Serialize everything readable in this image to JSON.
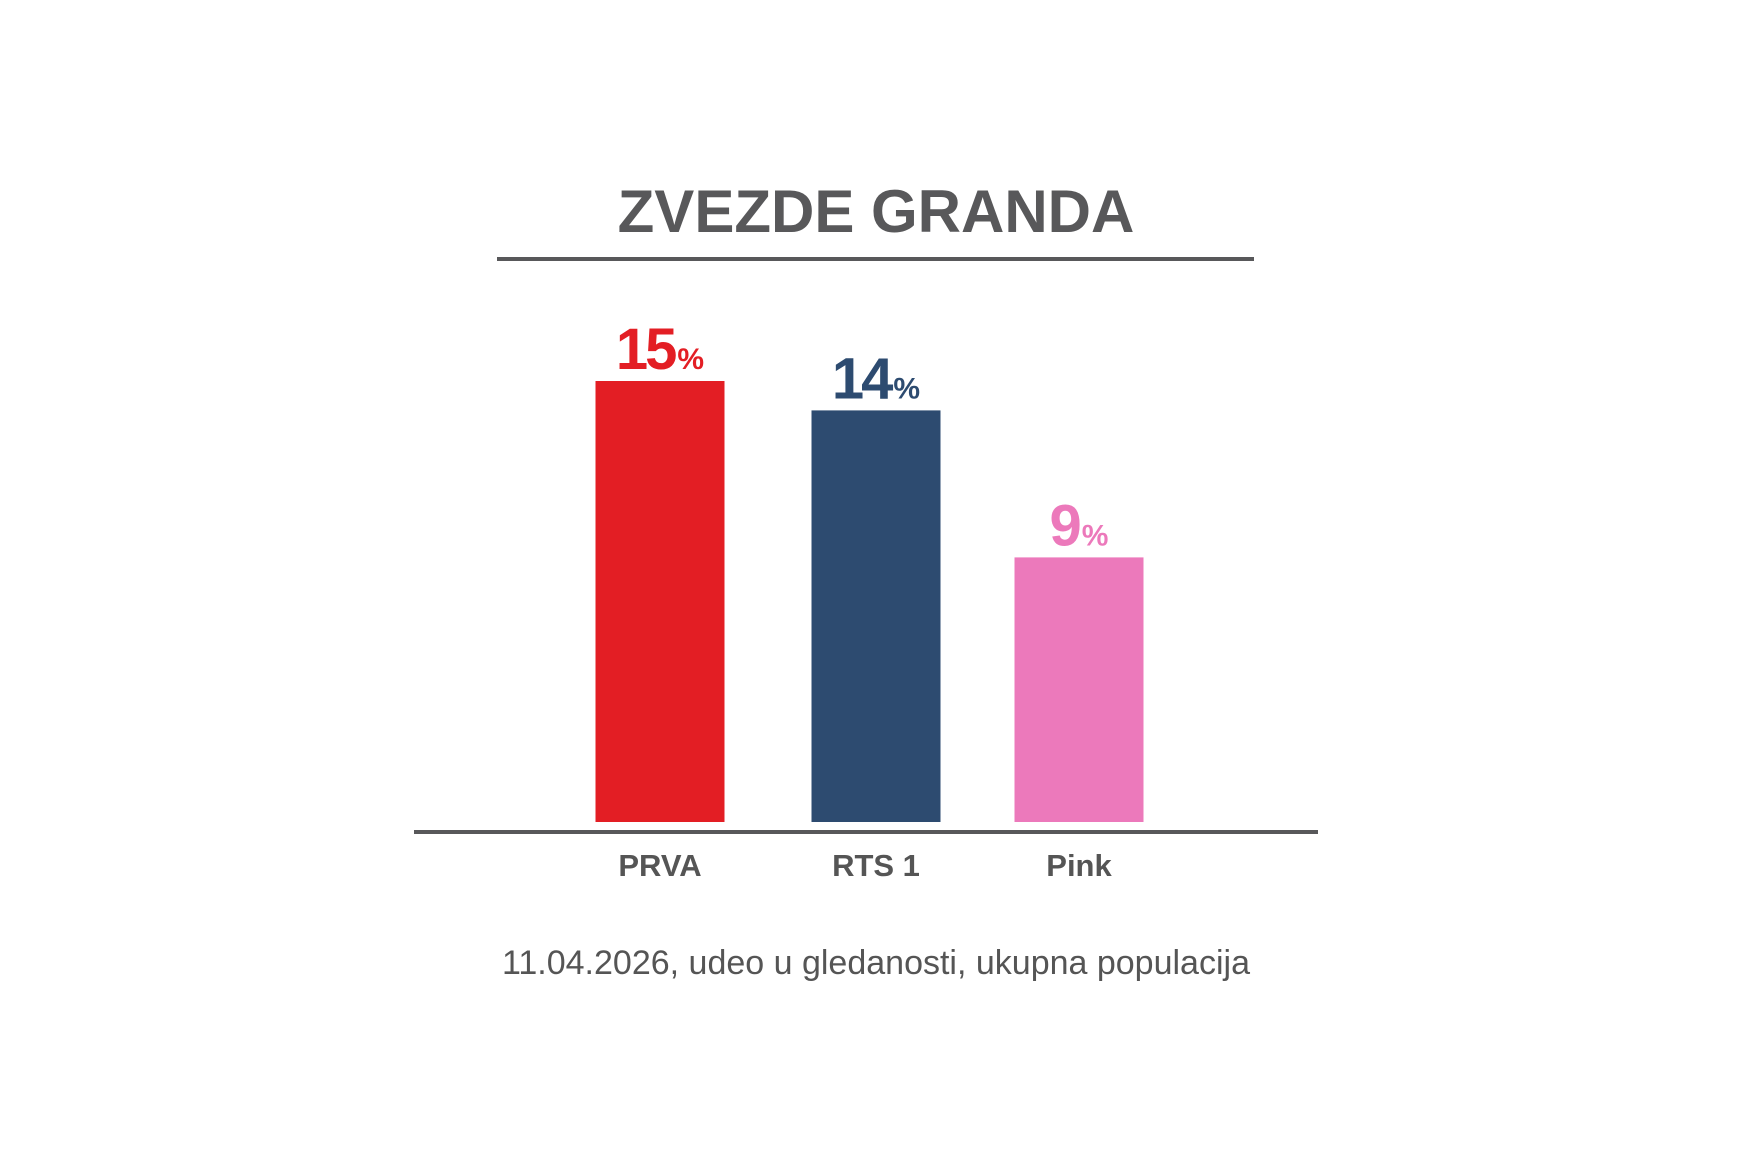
{
  "chart_data": {
    "type": "bar",
    "title": "ZVEZDE GRANDA",
    "caption": "11.04.2026, udeo u gledanosti, ukupna populacija",
    "categories": [
      "PRVA",
      "RTS 1",
      "Pink"
    ],
    "values": [
      15,
      14,
      9
    ],
    "value_suffix": "%",
    "colors": [
      "#e31e24",
      "#2d4b70",
      "#ec79bb"
    ],
    "grid": false,
    "legend": "none"
  },
  "style": {
    "title_color": "#58585a",
    "rule_color": "#58585a",
    "label_color": "#555555"
  }
}
